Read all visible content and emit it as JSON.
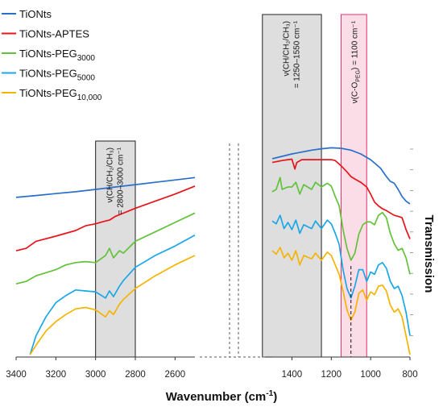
{
  "chart_data": {
    "type": "line",
    "xlabel": "Wavenumber (cm",
    "xlabel_sup": "-1",
    "xlabel_suffix": ")",
    "ylabel": "Transmission",
    "x_ticks_left": [
      "3400",
      "3200",
      "3000",
      "2800",
      "2600"
    ],
    "x_ticks_right": [
      "1400",
      "1200",
      "1000",
      "800"
    ],
    "x_range_left": [
      3400,
      2500
    ],
    "x_range_right": [
      1500,
      800
    ],
    "legend": [
      {
        "label": "TiONts",
        "sub": "",
        "color": "#2a6fc9"
      },
      {
        "label": "TiONts-APTES",
        "sub": "",
        "color": "#e8141b"
      },
      {
        "label": "TiONts-PEG",
        "sub": "3000",
        "color": "#62c23a"
      },
      {
        "label": "TiONts-PEG",
        "sub": "5000",
        "color": "#1aa7e8"
      },
      {
        "label": "TiONts-PEG",
        "sub": "10,000",
        "color": "#f5b400"
      }
    ],
    "bands": [
      {
        "line1": "ν(CH/CH₂/CH₃)",
        "line2": "= 2800–3000 cm⁻¹",
        "x_range": [
          3000,
          2800
        ],
        "fill": "#dedede"
      },
      {
        "line1": "ν(CH/CH₂/CH₃)",
        "line2": "= 1250–1550 cm⁻¹",
        "x_range": [
          1550,
          1250
        ],
        "fill": "#dedede"
      },
      {
        "line1": "ν(C-O",
        "line1_sub": "PEG",
        "line1_suffix": ") = 1100 cm⁻¹",
        "x_range": [
          1150,
          1020
        ],
        "fill": "#fbdde8"
      }
    ],
    "marker_line_x": 1100,
    "series": [
      {
        "name": "TiONts",
        "left": [
          [
            3400,
            3.38
          ],
          [
            3300,
            3.42
          ],
          [
            3200,
            3.46
          ],
          [
            3100,
            3.5
          ],
          [
            3000,
            3.55
          ],
          [
            2900,
            3.6
          ],
          [
            2800,
            3.65
          ],
          [
            2700,
            3.7
          ],
          [
            2600,
            3.75
          ],
          [
            2500,
            3.8
          ]
        ],
        "right": [
          [
            1500,
            4.2
          ],
          [
            1450,
            4.25
          ],
          [
            1400,
            4.3
          ],
          [
            1350,
            4.34
          ],
          [
            1300,
            4.38
          ],
          [
            1250,
            4.41
          ],
          [
            1200,
            4.43
          ],
          [
            1150,
            4.42
          ],
          [
            1100,
            4.38
          ],
          [
            1050,
            4.3
          ],
          [
            1000,
            4.18
          ],
          [
            950,
            4.0
          ],
          [
            920,
            3.82
          ],
          [
            900,
            3.72
          ],
          [
            880,
            3.68
          ],
          [
            860,
            3.55
          ],
          [
            840,
            3.4
          ],
          [
            820,
            3.3
          ],
          [
            800,
            3.24
          ]
        ]
      },
      {
        "name": "TiONts-APTES",
        "left": [
          [
            3400,
            2.25
          ],
          [
            3350,
            2.3
          ],
          [
            3300,
            2.45
          ],
          [
            3200,
            2.56
          ],
          [
            3100,
            2.68
          ],
          [
            3050,
            2.78
          ],
          [
            3000,
            2.82
          ],
          [
            2950,
            2.88
          ],
          [
            2930,
            2.9
          ],
          [
            2900,
            2.98
          ],
          [
            2800,
            3.15
          ],
          [
            2700,
            3.3
          ],
          [
            2600,
            3.45
          ],
          [
            2500,
            3.62
          ]
        ],
        "right": [
          [
            1500,
            4.12
          ],
          [
            1450,
            4.16
          ],
          [
            1420,
            4.18
          ],
          [
            1400,
            4.19
          ],
          [
            1385,
            3.98
          ],
          [
            1375,
            4.12
          ],
          [
            1350,
            4.18
          ],
          [
            1300,
            4.18
          ],
          [
            1250,
            4.18
          ],
          [
            1200,
            4.18
          ],
          [
            1180,
            4.16
          ],
          [
            1150,
            4.05
          ],
          [
            1120,
            3.92
          ],
          [
            1100,
            3.82
          ],
          [
            1080,
            3.77
          ],
          [
            1050,
            3.7
          ],
          [
            1020,
            3.6
          ],
          [
            1000,
            3.45
          ],
          [
            980,
            3.28
          ],
          [
            960,
            3.2
          ],
          [
            940,
            3.14
          ],
          [
            920,
            3.1
          ],
          [
            900,
            3.05
          ],
          [
            880,
            3.0
          ],
          [
            860,
            2.98
          ],
          [
            840,
            2.95
          ],
          [
            820,
            2.7
          ],
          [
            800,
            2.5
          ]
        ]
      },
      {
        "name": "TiONts-PEG3000",
        "left": [
          [
            3400,
            1.55
          ],
          [
            3350,
            1.6
          ],
          [
            3300,
            1.72
          ],
          [
            3200,
            1.85
          ],
          [
            3150,
            1.95
          ],
          [
            3100,
            2.0
          ],
          [
            3050,
            2.02
          ],
          [
            3000,
            2.0
          ],
          [
            2950,
            2.15
          ],
          [
            2930,
            2.3
          ],
          [
            2910,
            2.1
          ],
          [
            2880,
            2.25
          ],
          [
            2860,
            2.2
          ],
          [
            2800,
            2.45
          ],
          [
            2700,
            2.65
          ],
          [
            2600,
            2.85
          ],
          [
            2500,
            3.05
          ]
        ],
        "right": [
          [
            1500,
            3.5
          ],
          [
            1480,
            3.55
          ],
          [
            1460,
            3.8
          ],
          [
            1450,
            3.55
          ],
          [
            1420,
            3.6
          ],
          [
            1400,
            3.6
          ],
          [
            1380,
            3.7
          ],
          [
            1360,
            3.45
          ],
          [
            1340,
            3.65
          ],
          [
            1300,
            3.55
          ],
          [
            1280,
            3.7
          ],
          [
            1250,
            3.6
          ],
          [
            1220,
            3.68
          ],
          [
            1200,
            3.62
          ],
          [
            1180,
            3.4
          ],
          [
            1160,
            3.2
          ],
          [
            1140,
            2.7
          ],
          [
            1120,
            2.3
          ],
          [
            1100,
            2.05
          ],
          [
            1080,
            2.2
          ],
          [
            1060,
            2.6
          ],
          [
            1040,
            2.8
          ],
          [
            1020,
            2.86
          ],
          [
            1000,
            2.86
          ],
          [
            980,
            2.8
          ],
          [
            960,
            3.0
          ],
          [
            940,
            3.06
          ],
          [
            920,
            2.95
          ],
          [
            900,
            2.62
          ],
          [
            880,
            2.4
          ],
          [
            860,
            2.26
          ],
          [
            840,
            2.3
          ],
          [
            820,
            2.1
          ],
          [
            800,
            1.75
          ]
        ]
      },
      {
        "name": "TiONts-PEG5000",
        "left": [
          [
            3330,
            0.05
          ],
          [
            3300,
            0.45
          ],
          [
            3250,
            0.85
          ],
          [
            3200,
            1.15
          ],
          [
            3150,
            1.3
          ],
          [
            3100,
            1.42
          ],
          [
            3050,
            1.4
          ],
          [
            3000,
            1.38
          ],
          [
            2950,
            1.25
          ],
          [
            2930,
            1.4
          ],
          [
            2910,
            1.28
          ],
          [
            2880,
            1.5
          ],
          [
            2860,
            1.62
          ],
          [
            2800,
            1.9
          ],
          [
            2700,
            2.15
          ],
          [
            2600,
            2.35
          ],
          [
            2500,
            2.58
          ]
        ],
        "right": [
          [
            1500,
            2.88
          ],
          [
            1480,
            2.82
          ],
          [
            1460,
            3.0
          ],
          [
            1440,
            2.72
          ],
          [
            1420,
            2.85
          ],
          [
            1400,
            2.7
          ],
          [
            1380,
            2.9
          ],
          [
            1360,
            2.62
          ],
          [
            1340,
            2.8
          ],
          [
            1300,
            2.72
          ],
          [
            1280,
            2.88
          ],
          [
            1250,
            2.72
          ],
          [
            1220,
            2.9
          ],
          [
            1200,
            2.82
          ],
          [
            1180,
            2.62
          ],
          [
            1160,
            2.38
          ],
          [
            1140,
            1.85
          ],
          [
            1120,
            1.45
          ],
          [
            1100,
            1.25
          ],
          [
            1080,
            1.5
          ],
          [
            1060,
            1.85
          ],
          [
            1040,
            1.85
          ],
          [
            1020,
            1.6
          ],
          [
            1000,
            1.8
          ],
          [
            980,
            1.75
          ],
          [
            960,
            1.95
          ],
          [
            940,
            2.0
          ],
          [
            920,
            1.88
          ],
          [
            900,
            1.6
          ],
          [
            880,
            1.45
          ],
          [
            860,
            1.5
          ],
          [
            840,
            1.3
          ],
          [
            820,
            0.95
          ],
          [
            800,
            0.45
          ]
        ]
      },
      {
        "name": "TiONts-PEG10,000",
        "left": [
          [
            3330,
            0.05
          ],
          [
            3300,
            0.25
          ],
          [
            3250,
            0.55
          ],
          [
            3200,
            0.75
          ],
          [
            3150,
            0.9
          ],
          [
            3100,
            1.02
          ],
          [
            3050,
            1.05
          ],
          [
            3000,
            1.0
          ],
          [
            2950,
            0.85
          ],
          [
            2930,
            0.98
          ],
          [
            2910,
            0.9
          ],
          [
            2880,
            1.12
          ],
          [
            2860,
            1.22
          ],
          [
            2800,
            1.45
          ],
          [
            2700,
            1.72
          ],
          [
            2600,
            1.95
          ],
          [
            2500,
            2.15
          ]
        ],
        "right": [
          [
            1500,
            2.25
          ],
          [
            1480,
            2.18
          ],
          [
            1460,
            2.32
          ],
          [
            1440,
            2.1
          ],
          [
            1420,
            2.2
          ],
          [
            1400,
            2.05
          ],
          [
            1380,
            2.25
          ],
          [
            1360,
            1.95
          ],
          [
            1340,
            2.15
          ],
          [
            1300,
            2.08
          ],
          [
            1280,
            2.2
          ],
          [
            1250,
            2.05
          ],
          [
            1220,
            2.22
          ],
          [
            1200,
            2.15
          ],
          [
            1180,
            1.95
          ],
          [
            1160,
            1.75
          ],
          [
            1140,
            1.4
          ],
          [
            1120,
            1.0
          ],
          [
            1100,
            0.78
          ],
          [
            1080,
            0.95
          ],
          [
            1060,
            1.35
          ],
          [
            1040,
            1.42
          ],
          [
            1020,
            1.2
          ],
          [
            1000,
            1.38
          ],
          [
            980,
            1.32
          ],
          [
            960,
            1.5
          ],
          [
            940,
            1.52
          ],
          [
            920,
            1.4
          ],
          [
            900,
            1.1
          ],
          [
            880,
            0.95
          ],
          [
            860,
            1.02
          ],
          [
            840,
            0.85
          ],
          [
            820,
            0.45
          ],
          [
            800,
            0.05
          ]
        ]
      }
    ]
  }
}
